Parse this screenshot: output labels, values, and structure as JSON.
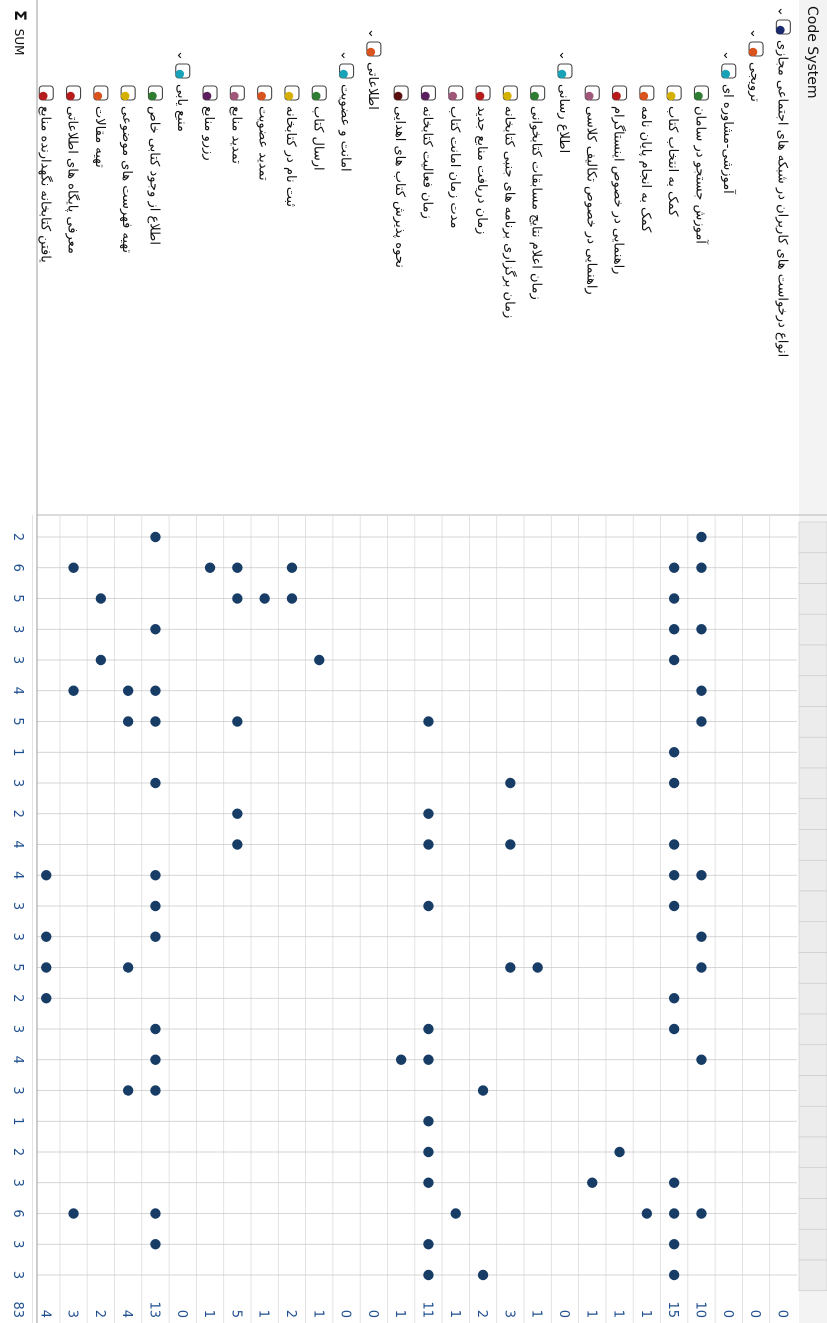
{
  "header": {
    "title": "Code System",
    "sum_symbol": "Σ",
    "sum_label": "SUM"
  },
  "rows": [
    {
      "code": "انواع درخواست های کاربران در شبکه های اجتماعی مجازی",
      "color": "#1a2a6c",
      "level": 0,
      "expandable": true,
      "count": "0"
    },
    {
      "code": "ترویجی",
      "color": "#d9531e",
      "level": 1,
      "expandable": true,
      "count": "0"
    },
    {
      "code": "آموزشی-مشاوره ای",
      "color": "#17a2b8",
      "level": 2,
      "expandable": true,
      "count": "0"
    },
    {
      "code": "آموزش جستجو در سامان",
      "color": "#2e7d32",
      "level": 3,
      "expandable": false,
      "count": "10"
    },
    {
      "code": "کمک به انتخاب کتاب",
      "color": "#d4b000",
      "level": 3,
      "expandable": false,
      "count": "15"
    },
    {
      "code": "کمک به انجام پایان نامه",
      "color": "#d9531e",
      "level": 3,
      "expandable": false,
      "count": "1"
    },
    {
      "code": "راهنمایی در خصوص اینستاگرام",
      "color": "#b71c1c",
      "level": 3,
      "expandable": false,
      "count": "1"
    },
    {
      "code": "راهنمایی در خصوص تکالیف کلاسی",
      "color": "#a0577a",
      "level": 3,
      "expandable": false,
      "count": "1"
    },
    {
      "code": "اطلاع رسانی",
      "color": "#17a2b8",
      "level": 2,
      "expandable": true,
      "count": "0"
    },
    {
      "code": "زمان اعلام نتایج مسابقات کتابخوانی",
      "color": "#2e7d32",
      "level": 3,
      "expandable": false,
      "count": "1"
    },
    {
      "code": "زمان برگزاری برنامه های جنبی کتابخانه",
      "color": "#d4b000",
      "level": 3,
      "expandable": false,
      "count": "3"
    },
    {
      "code": "زمان دریافت منابع جدید",
      "color": "#b71c1c",
      "level": 3,
      "expandable": false,
      "count": "2"
    },
    {
      "code": "مدت زمان امانت کتاب",
      "color": "#a0577a",
      "level": 3,
      "expandable": false,
      "count": "1"
    },
    {
      "code": "زمان فعالیت کتابخانه",
      "color": "#5b1f5e",
      "level": 3,
      "expandable": false,
      "count": "11"
    },
    {
      "code": "نحوه پذیرش کتاب های اهدایی",
      "color": "#5b1010",
      "level": 3,
      "expandable": false,
      "count": "1"
    },
    {
      "code": "اطلاعاتی",
      "color": "#d9531e",
      "level": 1,
      "expandable": true,
      "count": "0"
    },
    {
      "code": "امانت و عضویت",
      "color": "#17a2b8",
      "level": 2,
      "expandable": true,
      "count": "0"
    },
    {
      "code": "ارسال کتاب",
      "color": "#2e7d32",
      "level": 3,
      "expandable": false,
      "count": "1"
    },
    {
      "code": "ثبت نام در کتابخانه",
      "color": "#d4b000",
      "level": 3,
      "expandable": false,
      "count": "2"
    },
    {
      "code": "تمدید عضویت",
      "color": "#d9531e",
      "level": 3,
      "expandable": false,
      "count": "1"
    },
    {
      "code": "تمدید منابع",
      "color": "#a0577a",
      "level": 3,
      "expandable": false,
      "count": "5"
    },
    {
      "code": "رزرو منابع",
      "color": "#5b1f5e",
      "level": 3,
      "expandable": false,
      "count": "1"
    },
    {
      "code": "منبع یابی",
      "color": "#17a2b8",
      "level": 2,
      "expandable": true,
      "count": "0"
    },
    {
      "code": "اطلاع از وجود کتابی خاص",
      "color": "#2e7d32",
      "level": 3,
      "expandable": false,
      "count": "13"
    },
    {
      "code": "تهیه فهرست های موضوعی",
      "color": "#d4b000",
      "level": 3,
      "expandable": false,
      "count": "4"
    },
    {
      "code": "تهیه مقالات",
      "color": "#d9531e",
      "level": 3,
      "expandable": false,
      "count": "2"
    },
    {
      "code": "معرفی پایگاه های اطلاعاتی",
      "color": "#b71c1c",
      "level": 3,
      "expandable": false,
      "count": "3"
    },
    {
      "code": "یافتن کتابخانه نگهدارنده منابع",
      "color": "#b71c1c",
      "level": 3,
      "expandable": false,
      "count": "4"
    }
  ],
  "column_sums": [
    "2",
    "6",
    "5",
    "3",
    "3",
    "4",
    "5",
    "1",
    "3",
    "2",
    "4",
    "4",
    "3",
    "3",
    "5",
    "2",
    "3",
    "4",
    "3",
    "1",
    "2",
    "3",
    "6",
    "3",
    "3"
  ],
  "grand_total": "83",
  "dot_color": "#173c66",
  "cells": [
    [
      3,
      0
    ],
    [
      3,
      1
    ],
    [
      3,
      3
    ],
    [
      3,
      5
    ],
    [
      3,
      6
    ],
    [
      3,
      11
    ],
    [
      3,
      13
    ],
    [
      3,
      14
    ],
    [
      3,
      17
    ],
    [
      3,
      22
    ],
    [
      4,
      1
    ],
    [
      4,
      2
    ],
    [
      4,
      3
    ],
    [
      4,
      4
    ],
    [
      4,
      7
    ],
    [
      4,
      8
    ],
    [
      4,
      10
    ],
    [
      4,
      11
    ],
    [
      4,
      12
    ],
    [
      4,
      15
    ],
    [
      4,
      16
    ],
    [
      4,
      21
    ],
    [
      4,
      22
    ],
    [
      4,
      23
    ],
    [
      4,
      24
    ],
    [
      5,
      22
    ],
    [
      6,
      20
    ],
    [
      7,
      21
    ],
    [
      9,
      14
    ],
    [
      10,
      8
    ],
    [
      10,
      10
    ],
    [
      10,
      14
    ],
    [
      11,
      18
    ],
    [
      11,
      24
    ],
    [
      12,
      22
    ],
    [
      13,
      6
    ],
    [
      13,
      9
    ],
    [
      13,
      10
    ],
    [
      13,
      12
    ],
    [
      13,
      16
    ],
    [
      13,
      17
    ],
    [
      13,
      19
    ],
    [
      13,
      20
    ],
    [
      13,
      21
    ],
    [
      13,
      23
    ],
    [
      13,
      24
    ],
    [
      14,
      17
    ],
    [
      17,
      4
    ],
    [
      18,
      1
    ],
    [
      18,
      2
    ],
    [
      19,
      2
    ],
    [
      20,
      1
    ],
    [
      20,
      2
    ],
    [
      20,
      6
    ],
    [
      20,
      9
    ],
    [
      20,
      10
    ],
    [
      21,
      1
    ],
    [
      23,
      0
    ],
    [
      23,
      3
    ],
    [
      23,
      5
    ],
    [
      23,
      6
    ],
    [
      23,
      8
    ],
    [
      23,
      11
    ],
    [
      23,
      12
    ],
    [
      23,
      13
    ],
    [
      23,
      16
    ],
    [
      23,
      17
    ],
    [
      23,
      18
    ],
    [
      23,
      22
    ],
    [
      23,
      23
    ],
    [
      24,
      5
    ],
    [
      24,
      6
    ],
    [
      24,
      14
    ],
    [
      24,
      18
    ],
    [
      25,
      2
    ],
    [
      25,
      4
    ],
    [
      26,
      1
    ],
    [
      26,
      5
    ],
    [
      26,
      22
    ],
    [
      27,
      11
    ],
    [
      27,
      13
    ],
    [
      27,
      14
    ],
    [
      27,
      15
    ]
  ]
}
